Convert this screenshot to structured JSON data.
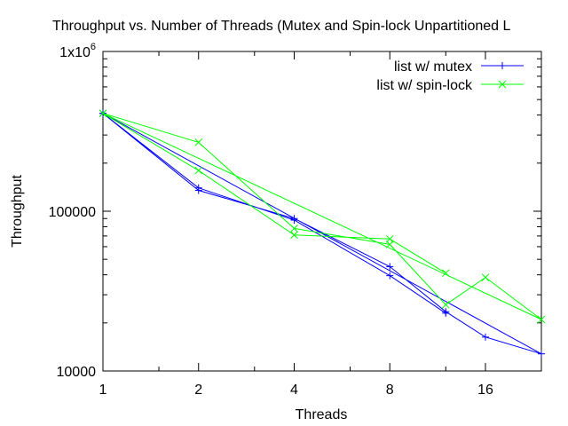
{
  "chart_data": {
    "type": "line",
    "title": "Throughput vs. Number of Threads (Mutex and Spin-lock Unpartitioned L",
    "xlabel": "Threads",
    "ylabel": "Throughput",
    "xscale": "log2",
    "yscale": "log10",
    "xlim": [
      1,
      24
    ],
    "ylim": [
      10000,
      1000000
    ],
    "x_ticks": [
      1,
      2,
      4,
      8,
      16
    ],
    "x_tick_labels": [
      "1",
      "2",
      "4",
      "8",
      "16"
    ],
    "y_ticks": [
      10000,
      100000,
      1000000
    ],
    "y_tick_labels": [
      "10000",
      "100000",
      "1x10"
    ],
    "y_tick_label_superscripts": [
      "",
      "",
      "6"
    ],
    "grid": false,
    "legend_position": "top-right",
    "series": [
      {
        "name": "list w/ mutex",
        "color": "#0000ff",
        "marker": "plus",
        "x": [
          1,
          2,
          4,
          8,
          12,
          16,
          24,
          1,
          2,
          4,
          8,
          12
        ],
        "y": [
          410000,
          135000,
          90000,
          45000,
          23500,
          16300,
          12800,
          410000,
          140000,
          88000,
          39500,
          23000
        ]
      },
      {
        "name": "list w/ spin-lock",
        "color": "#00ff00",
        "marker": "cross",
        "x": [
          1,
          2,
          4,
          8,
          12,
          16,
          24,
          1,
          2,
          4,
          8,
          12
        ],
        "y": [
          410000,
          270000,
          78000,
          62000,
          26000,
          38500,
          21000,
          410000,
          180000,
          71000,
          67000,
          41000
        ]
      }
    ]
  }
}
